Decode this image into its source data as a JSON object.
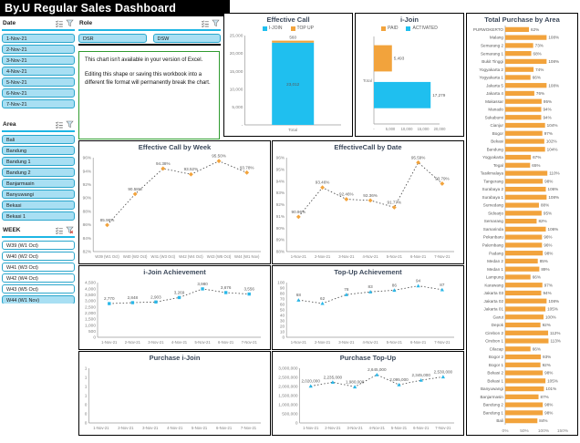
{
  "title_bar": {
    "title": "By.U Regular Sales Dashboard"
  },
  "colors": {
    "accent_cyan": "#1FBFEF",
    "accent_orange": "#F2A33C",
    "slicer_fill": "#A8DFF3",
    "slicer_border": "#2AA6CC",
    "header_bg": "#000000",
    "notice_border": "#2F9B2F",
    "marker_blue": "#29B7E8"
  },
  "slicers": {
    "date": {
      "label": "Date",
      "items": [
        {
          "label": "1-Nov-21",
          "selected": true
        },
        {
          "label": "2-Nov-21",
          "selected": true
        },
        {
          "label": "3-Nov-21",
          "selected": true
        },
        {
          "label": "4-Nov-21",
          "selected": true
        },
        {
          "label": "5-Nov-21",
          "selected": true
        },
        {
          "label": "6-Nov-21",
          "selected": true
        },
        {
          "label": "7-Nov-21",
          "selected": true
        }
      ]
    },
    "role": {
      "label": "Role",
      "items": [
        {
          "label": "DSR",
          "selected": true
        },
        {
          "label": "DSW",
          "selected": true
        }
      ]
    },
    "area": {
      "label": "Area",
      "items": [
        {
          "label": "Bali",
          "selected": true
        },
        {
          "label": "Bandung",
          "selected": true
        },
        {
          "label": "Bandung 1",
          "selected": true
        },
        {
          "label": "Bandung 2",
          "selected": true
        },
        {
          "label": "Banjarmasin",
          "selected": true
        },
        {
          "label": "Banyuwangi",
          "selected": true
        },
        {
          "label": "Bekasi",
          "selected": true
        },
        {
          "label": "Bekasi 1",
          "selected": true
        }
      ]
    },
    "week": {
      "label": "WEEK",
      "items": [
        {
          "label": "W39 (W1 Oct)",
          "selected": false
        },
        {
          "label": "W40 (W2 Oct)",
          "selected": false
        },
        {
          "label": "W41 (W3 Oct)",
          "selected": false
        },
        {
          "label": "W42 (W4 Oct)",
          "selected": false
        },
        {
          "label": "W43 (W5 Oct)",
          "selected": false
        },
        {
          "label": "W44 (W1 Nov)",
          "selected": true
        }
      ]
    }
  },
  "notice": {
    "line1": "This chart isn't available in your version of Excel.",
    "line2": "Editing this shape or saving this workbook into a different file format will permanently break the chart."
  },
  "chart_data": [
    {
      "id": "effective_call",
      "type": "column-stacked",
      "title": "Effective Call",
      "legend": [
        {
          "label": "I-JOIN",
          "color": "#1FBFEF"
        },
        {
          "label": "TOP UP",
          "color": "#F2A33C"
        }
      ],
      "categories": [
        "Total"
      ],
      "series": [
        {
          "name": "I-JOIN",
          "values": [
            23012
          ],
          "label": "23,012",
          "color": "#1FBFEF"
        },
        {
          "name": "TOP UP",
          "values": [
            560
          ],
          "label": "560",
          "color": "#F2A33C"
        }
      ],
      "ylim": [
        0,
        25000
      ],
      "yticks": [
        "25,000",
        "20,000",
        "15,000",
        "10,000",
        "5,000",
        "-"
      ]
    },
    {
      "id": "ijoin",
      "type": "barh-grouped",
      "title": "i-Join",
      "legend": [
        {
          "label": "PAID",
          "color": "#F2A33C"
        },
        {
          "label": "ACTIVATED",
          "color": "#1FBFEF"
        }
      ],
      "categories": [
        "Total"
      ],
      "series": [
        {
          "name": "PAID",
          "value": 5493,
          "label": "5,493",
          "color": "#F2A33C"
        },
        {
          "name": "ACTIVATED",
          "value": 17279,
          "label": "17,279",
          "color": "#1FBFEF"
        }
      ],
      "xlim": [
        0,
        20000
      ],
      "xticks": [
        "-",
        "5,000",
        "10,000",
        "15,000",
        "20,000"
      ]
    },
    {
      "id": "week",
      "type": "line",
      "title": "Effective Call by Week",
      "x": [
        "W39 (W1 Oct)",
        "W40 (W2 Oct)",
        "W41 (W3 Oct)",
        "W42 (W4 Oct)",
        "W43 (W5 Oct)",
        "W44 (W1 Nov)"
      ],
      "values": [
        85.96,
        90.58,
        94.38,
        93.52,
        95.5,
        93.78
      ],
      "labels": [
        "85.96%",
        "90.58%",
        "94.38%",
        "93.52%",
        "95.50%",
        "93.78%"
      ],
      "ylim": [
        82,
        96
      ],
      "yticks": [
        "96%",
        "94%",
        "92%",
        "90%",
        "88%",
        "86%",
        "84%",
        "82%"
      ],
      "marker": "diamond",
      "marker_color": "#F2A33C"
    },
    {
      "id": "date",
      "type": "line",
      "title": "EffectiveCall by Date",
      "x": [
        "1-Nov-21",
        "2-Nov-21",
        "3-Nov-21",
        "4-Nov-21",
        "5-Nov-21",
        "6-Nov-21",
        "7-Nov-21"
      ],
      "values": [
        90.96,
        93.46,
        92.46,
        92.36,
        91.77,
        95.59,
        93.79
      ],
      "labels": [
        "90.96%",
        "93.46%",
        "92.46%",
        "92.36%",
        "91.77%",
        "95.59%",
        "93.79%"
      ],
      "ylim": [
        88,
        96
      ],
      "yticks": [
        "96%",
        "95%",
        "94%",
        "93%",
        "92%",
        "91%",
        "90%",
        "89%",
        "88%"
      ],
      "marker": "diamond",
      "marker_color": "#F2A33C"
    },
    {
      "id": "ijoin_ach",
      "type": "line",
      "title": "i-Join Achievement",
      "x": [
        "1-Nov-21",
        "2-Nov-21",
        "3-Nov-21",
        "4-Nov-21",
        "5-Nov-21",
        "6-Nov-21",
        "7-Nov-21"
      ],
      "values": [
        2770,
        2848,
        2903,
        3269,
        3980,
        3676,
        3556
      ],
      "labels": [
        "2,770",
        "2,848",
        "2,903",
        "3,269",
        "3,980",
        "3,676",
        "3,556"
      ],
      "ylim": [
        0,
        4500
      ],
      "yticks": [
        "4,500",
        "4,000",
        "3,500",
        "3,000",
        "2,500",
        "2,000",
        "1,500",
        "1,000",
        "500",
        "0"
      ],
      "marker": "square",
      "marker_color": "#29B7E8"
    },
    {
      "id": "topup_ach",
      "type": "line",
      "title": "Top-Up Achievement",
      "x": [
        "1-Nov-21",
        "2-Nov-21",
        "3-Nov-21",
        "4-Nov-21",
        "5-Nov-21",
        "6-Nov-21",
        "7-Nov-21"
      ],
      "values": [
        68,
        62,
        78,
        83,
        86,
        94,
        87
      ],
      "labels": [
        "68",
        "62",
        "78",
        "83",
        "86",
        "94",
        "87"
      ],
      "ylim": [
        0,
        100
      ],
      "yticks": [
        "100",
        "90",
        "80",
        "70",
        "60",
        "50",
        "40",
        "30",
        "20",
        "10",
        "0"
      ],
      "marker": "triangle",
      "marker_color": "#29B7E8"
    },
    {
      "id": "purchase_ijoin",
      "type": "line",
      "title": "Purchase i-Join",
      "x": [
        "1-Nov-21",
        "2-Nov-21",
        "3-Nov-21",
        "4-Nov-21",
        "5-Nov-21",
        "6-Nov-21",
        "7-Nov-21"
      ],
      "values": [],
      "labels": [],
      "ylim": [
        0,
        1
      ],
      "yticks": [
        "1",
        "1",
        "1",
        "1",
        "0",
        "0",
        "0"
      ],
      "marker": "triangle",
      "marker_color": "#29B7E8"
    },
    {
      "id": "purchase_topup",
      "type": "line",
      "title": "Purchase Top-Up",
      "x": [
        "1-Nov-21",
        "2-Nov-21",
        "3-Nov-21",
        "4-Nov-21",
        "5-Nov-21",
        "6-Nov-21",
        "7-Nov-21"
      ],
      "values": [
        2020000,
        2235000,
        1980000,
        2645000,
        2095000,
        2345000,
        2530000
      ],
      "labels": [
        "2,020,000",
        "2,235,000",
        "1,980,000",
        "2,645,000",
        "2,095,000",
        "2,345,000",
        "2,530,000"
      ],
      "ylim": [
        0,
        3000000
      ],
      "yticks": [
        "3,000,000",
        "2,500,000",
        "2,000,000",
        "1,500,000",
        "1,000,000",
        "500,000",
        "0"
      ],
      "marker": "triangle",
      "marker_color": "#29B7E8"
    },
    {
      "id": "total_purchase",
      "type": "barh",
      "title": "Total Purchase by Area",
      "xlim": [
        0,
        150
      ],
      "xticks": [
        "0%",
        "50%",
        "100%",
        "150%"
      ],
      "bar_color": "#F2A33C",
      "rows": [
        {
          "area": "PURWOKERTO",
          "pct": 62
        },
        {
          "area": "Malang",
          "pct": 108
        },
        {
          "area": "Semarang 2",
          "pct": 73
        },
        {
          "area": "Semarang 1",
          "pct": 68
        },
        {
          "area": "Bukit Tinggi",
          "pct": 108
        },
        {
          "area": "Yogyakarta 2",
          "pct": 74
        },
        {
          "area": "Yogyakarta 1",
          "pct": 66
        },
        {
          "area": "Jakarta 5",
          "pct": 108
        },
        {
          "area": "Jakarta 4",
          "pct": 76
        },
        {
          "area": "Makassar",
          "pct": 95
        },
        {
          "area": "Manado",
          "pct": 94
        },
        {
          "area": "Sukabumi",
          "pct": 94
        },
        {
          "area": "Cianjur",
          "pct": 104
        },
        {
          "area": "Bogor",
          "pct": 97
        },
        {
          "area": "Bekasi",
          "pct": 102
        },
        {
          "area": "Bandung",
          "pct": 104
        },
        {
          "area": "Yogyakarta",
          "pct": 67
        },
        {
          "area": "Tegal",
          "pct": 65
        },
        {
          "area": "Tasikmalaya",
          "pct": 110
        },
        {
          "area": "Tangerang",
          "pct": 98
        },
        {
          "area": "Surabaya 2",
          "pct": 106
        },
        {
          "area": "Surabaya 1",
          "pct": 108
        },
        {
          "area": "Sumedang",
          "pct": 88
        },
        {
          "area": "Sidoarjo",
          "pct": 95
        },
        {
          "area": "Semarang",
          "pct": 82
        },
        {
          "area": "Samarinda",
          "pct": 106
        },
        {
          "area": "Pekanbaru",
          "pct": 96
        },
        {
          "area": "Palembang",
          "pct": 96
        },
        {
          "area": "Padang",
          "pct": 98
        },
        {
          "area": "Medan 2",
          "pct": 85
        },
        {
          "area": "Medan 1",
          "pct": 89
        },
        {
          "area": "Lampung",
          "pct": 66
        },
        {
          "area": "Karawang",
          "pct": 97
        },
        {
          "area": "Jakarta 03",
          "pct": 94
        },
        {
          "area": "Jakarta 02",
          "pct": 108
        },
        {
          "area": "Jakarta 01",
          "pct": 105
        },
        {
          "area": "Garut",
          "pct": 100
        },
        {
          "area": "Depok",
          "pct": 92
        },
        {
          "area": "Cirebon 2",
          "pct": 112
        },
        {
          "area": "Cirebon 1",
          "pct": 113
        },
        {
          "area": "Cilacap",
          "pct": 66
        },
        {
          "area": "Bogor 2",
          "pct": 93
        },
        {
          "area": "Bogor 1",
          "pct": 92
        },
        {
          "area": "Bekasi 2",
          "pct": 98
        },
        {
          "area": "Bekasi 1",
          "pct": 105
        },
        {
          "area": "Banyuwangi",
          "pct": 101
        },
        {
          "area": "Banjarmasin",
          "pct": 87
        },
        {
          "area": "Bandung 2",
          "pct": 98
        },
        {
          "area": "Bandung 1",
          "pct": 98
        },
        {
          "area": "Bali",
          "pct": 84
        }
      ]
    }
  ]
}
